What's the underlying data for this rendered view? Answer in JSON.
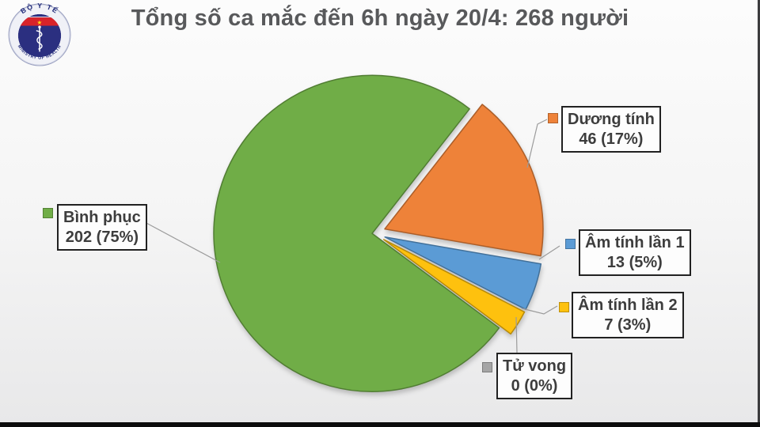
{
  "header": {
    "title": "Tổng số ca mắc đến 6h ngày 20/4: 268 người",
    "logo": {
      "top_text": "BỘ Y TẾ",
      "bottom_text": "MINISTRY OF HEALTH",
      "star": "★"
    }
  },
  "chart_data": {
    "type": "pie",
    "title": "Tổng số ca mắc đến 6h ngày 20/4: 268 người",
    "total": 268,
    "unit": "người",
    "start_angle_deg": 38,
    "legend_position": "callout-labels",
    "slices": [
      {
        "label": "Dương tính",
        "value": 46,
        "percent": "17%",
        "display": "46 (17%)",
        "color": "#EE8239",
        "exploded": true
      },
      {
        "label": "Âm tính lần 1",
        "value": 13,
        "percent": "5%",
        "display": "13 (5%)",
        "color": "#5B9BD5",
        "exploded": true
      },
      {
        "label": "Âm tính lần 2",
        "value": 7,
        "percent": "3%",
        "display": "7 (3%)",
        "color": "#FEC10E",
        "exploded": true
      },
      {
        "label": "Tử vong",
        "value": 0,
        "percent": "0%",
        "display": "0 (0%)",
        "color": "#A5A5A5",
        "exploded": true
      },
      {
        "label": "Bình phục",
        "value": 202,
        "percent": "75%",
        "display": "202 (75%)",
        "color": "#70AD47",
        "exploded": false
      }
    ]
  }
}
